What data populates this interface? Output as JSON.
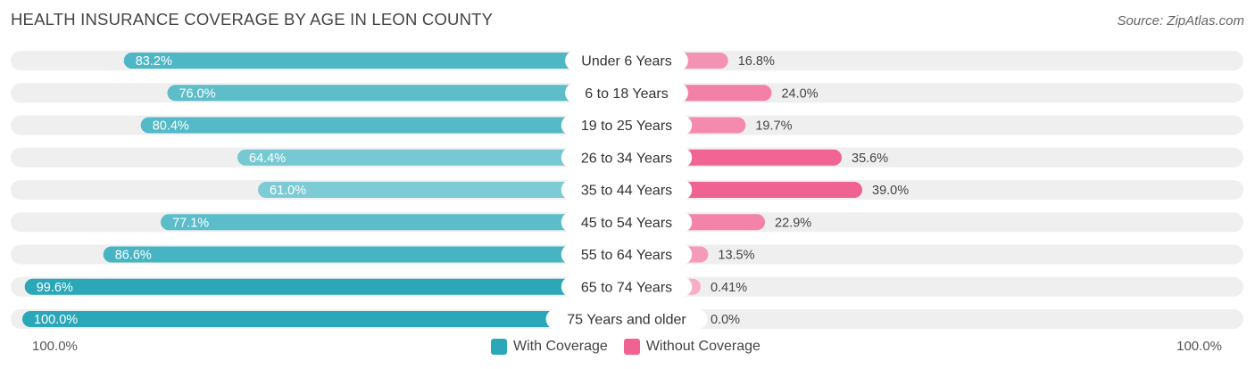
{
  "title": "HEALTH INSURANCE COVERAGE BY AGE IN LEON COUNTY",
  "source": "Source: ZipAtlas.com",
  "colors": {
    "with_strong": "#2aa7b8",
    "with_light": "#7fcdd6",
    "without_strong": "#f06292",
    "without_light": "#f7aec6",
    "track": "#efefef"
  },
  "chart_data": {
    "type": "bar",
    "orientation": "horizontal-diverging",
    "title": "HEALTH INSURANCE COVERAGE BY AGE IN LEON COUNTY",
    "categories": [
      "Under 6 Years",
      "6 to 18 Years",
      "19 to 25 Years",
      "26 to 34 Years",
      "35 to 44 Years",
      "45 to 54 Years",
      "55 to 64 Years",
      "65 to 74 Years",
      "75 Years and older"
    ],
    "series": [
      {
        "name": "With Coverage",
        "values": [
          83.2,
          76.0,
          80.4,
          64.4,
          61.0,
          77.1,
          86.6,
          99.6,
          100.0
        ],
        "labels": [
          "83.2%",
          "76.0%",
          "80.4%",
          "64.4%",
          "61.0%",
          "77.1%",
          "86.6%",
          "99.6%",
          "100.0%"
        ]
      },
      {
        "name": "Without Coverage",
        "values": [
          16.8,
          24.0,
          19.7,
          35.6,
          39.0,
          22.9,
          13.5,
          0.41,
          0.0
        ],
        "labels": [
          "16.8%",
          "24.0%",
          "19.7%",
          "35.6%",
          "39.0%",
          "22.9%",
          "13.5%",
          "0.41%",
          "0.0%"
        ]
      }
    ],
    "xlim": [
      -100,
      100
    ],
    "axis_labels": {
      "left": "100.0%",
      "right": "100.0%"
    },
    "legend": {
      "position": "bottom-center",
      "entries": [
        "With Coverage",
        "Without Coverage"
      ]
    }
  }
}
